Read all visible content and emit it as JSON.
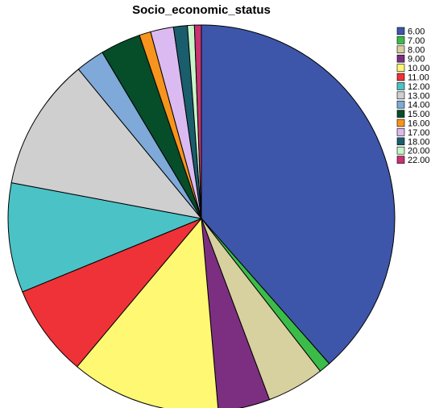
{
  "chart_data": {
    "type": "pie",
    "title": "Socio_economic_status",
    "legend_position": "right",
    "slices": [
      {
        "label": "6.00",
        "value": 40.0,
        "color": "#3d56aa"
      },
      {
        "label": "7.00",
        "value": 1.0,
        "color": "#3bbc49"
      },
      {
        "label": "8.00",
        "value": 5.0,
        "color": "#d7d09f"
      },
      {
        "label": "9.00",
        "value": 4.5,
        "color": "#7c2f80"
      },
      {
        "label": "10.00",
        "value": 13.0,
        "color": "#fff873"
      },
      {
        "label": "11.00",
        "value": 8.0,
        "color": "#ef3238"
      },
      {
        "label": "12.00",
        "value": 9.5,
        "color": "#4bc2c6"
      },
      {
        "label": "13.00",
        "value": 11.5,
        "color": "#cfcfcf"
      },
      {
        "label": "14.00",
        "value": 2.5,
        "color": "#7ea9d8"
      },
      {
        "label": "15.00",
        "value": 3.5,
        "color": "#064d2a"
      },
      {
        "label": "16.00",
        "value": 1.0,
        "color": "#f7941d"
      },
      {
        "label": "17.00",
        "value": 2.0,
        "color": "#dbbaf1"
      },
      {
        "label": "18.00",
        "value": 1.2,
        "color": "#1a5d6d"
      },
      {
        "label": "20.00",
        "value": 0.6,
        "color": "#c8f5c8"
      },
      {
        "label": "22.00",
        "value": 0.6,
        "color": "#c83372"
      }
    ]
  }
}
